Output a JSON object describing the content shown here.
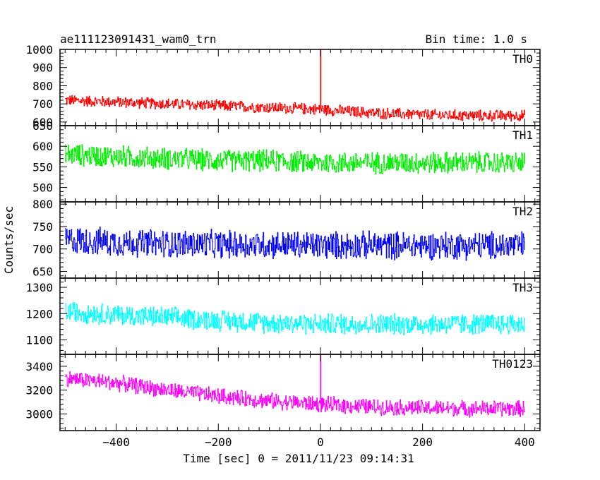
{
  "header": {
    "title": "ae111123091431_wam0_trn",
    "bin_time": "Bin time: 1.0 s"
  },
  "chart_data": {
    "type": "line",
    "xlabel": "Time [sec] 0 = 2011/11/23 09:14:31",
    "ylabel": "Counts/sec",
    "xlim": [
      -510,
      430
    ],
    "x_ticks": [
      -400,
      -200,
      0,
      200,
      400
    ],
    "panels": [
      {
        "name": "TH0",
        "color": "#ff0000",
        "ylim": [
          580,
          1000
        ],
        "y_ticks": [
          600,
          700,
          800,
          900,
          1000
        ],
        "x_range": [
          -500,
          400
        ],
        "baseline_points": [
          [
            -500,
            720
          ],
          [
            -400,
            710
          ],
          [
            -300,
            700
          ],
          [
            -200,
            690
          ],
          [
            -100,
            680
          ],
          [
            0,
            670
          ],
          [
            100,
            650
          ],
          [
            200,
            640
          ],
          [
            300,
            635
          ],
          [
            400,
            635
          ]
        ],
        "noise_amplitude": 35,
        "spikes": [
          [
            0,
            1000
          ]
        ]
      },
      {
        "name": "TH1",
        "color": "#00ee00",
        "ylim": [
          465,
          650
        ],
        "y_ticks": [
          500,
          550,
          600,
          650
        ],
        "x_range": [
          -500,
          400
        ],
        "baseline_points": [
          [
            -500,
            580
          ],
          [
            -400,
            575
          ],
          [
            -300,
            570
          ],
          [
            -200,
            565
          ],
          [
            -100,
            565
          ],
          [
            0,
            560
          ],
          [
            100,
            560
          ],
          [
            200,
            560
          ],
          [
            300,
            560
          ],
          [
            400,
            560
          ]
        ],
        "noise_amplitude": 30,
        "spikes": []
      },
      {
        "name": "TH2",
        "color": "#0000ff",
        "ylim": [
          635,
          805
        ],
        "y_ticks": [
          650,
          700,
          750,
          800
        ],
        "x_range": [
          -500,
          400
        ],
        "baseline_points": [
          [
            -500,
            720
          ],
          [
            -400,
            715
          ],
          [
            -300,
            712
          ],
          [
            -200,
            710
          ],
          [
            -100,
            710
          ],
          [
            0,
            708
          ],
          [
            100,
            708
          ],
          [
            200,
            708
          ],
          [
            300,
            708
          ],
          [
            400,
            708
          ]
        ],
        "noise_amplitude": 35,
        "spikes": []
      },
      {
        "name": "TH3",
        "color": "#00ffff",
        "ylim": [
          1045,
          1335
        ],
        "y_ticks": [
          1100,
          1200,
          1300
        ],
        "x_range": [
          -500,
          400
        ],
        "baseline_points": [
          [
            -500,
            1210
          ],
          [
            -400,
            1195
          ],
          [
            -300,
            1185
          ],
          [
            -200,
            1175
          ],
          [
            -100,
            1165
          ],
          [
            0,
            1160
          ],
          [
            100,
            1160
          ],
          [
            200,
            1160
          ],
          [
            300,
            1160
          ],
          [
            400,
            1160
          ]
        ],
        "noise_amplitude": 45,
        "spikes": []
      },
      {
        "name": "TH0123",
        "color": "#ff00ff",
        "ylim": [
          2860,
          3500
        ],
        "y_ticks": [
          3000,
          3200,
          3400
        ],
        "x_range": [
          -500,
          400
        ],
        "baseline_points": [
          [
            -500,
            3300
          ],
          [
            -400,
            3260
          ],
          [
            -300,
            3200
          ],
          [
            -200,
            3150
          ],
          [
            -100,
            3110
          ],
          [
            0,
            3080
          ],
          [
            100,
            3060
          ],
          [
            200,
            3050
          ],
          [
            300,
            3045
          ],
          [
            400,
            3045
          ]
        ],
        "noise_amplitude": 75,
        "spikes": [
          [
            0,
            3500
          ]
        ]
      }
    ]
  }
}
